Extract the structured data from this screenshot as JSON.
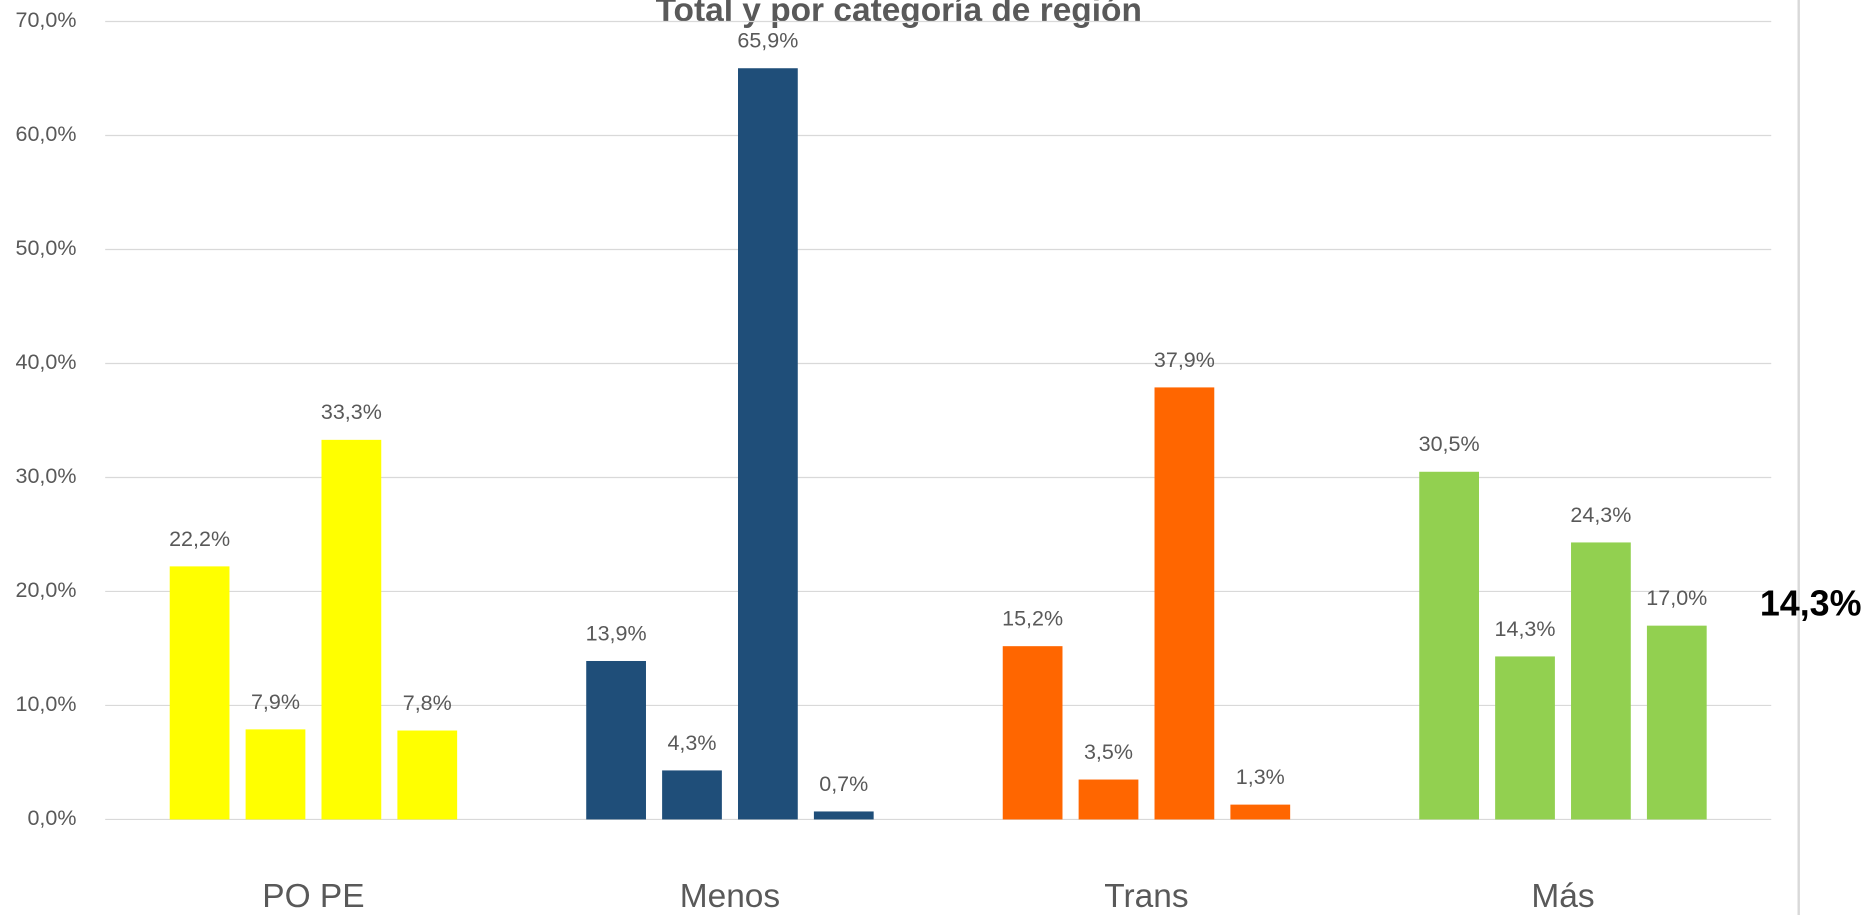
{
  "chart_data": {
    "type": "bar",
    "title": "Total y por categoría de región",
    "categories": [
      "PO PE",
      "Menos",
      "Trans",
      "Más"
    ],
    "groups": [
      {
        "color": "#ffff00",
        "values": [
          22.2,
          7.9,
          33.3,
          7.8
        ],
        "value_labels": [
          "22,2%",
          "7,9%",
          "33,3%",
          "7,8%"
        ]
      },
      {
        "color": "#1f4e79",
        "values": [
          13.9,
          4.3,
          65.9,
          0.7
        ],
        "value_labels": [
          "13,9%",
          "4,3%",
          "65,9%",
          "0,7%"
        ]
      },
      {
        "color": "#ff6600",
        "values": [
          15.2,
          3.5,
          37.9,
          1.3
        ],
        "value_labels": [
          "15,2%",
          "3,5%",
          "37,9%",
          "1,3%"
        ]
      },
      {
        "color": "#92d050",
        "values": [
          30.5,
          14.3,
          24.3,
          17.0
        ],
        "value_labels": [
          "30,5%",
          "14,3%",
          "24,3%",
          "17,0%"
        ]
      }
    ],
    "reference": {
      "value": 14.3,
      "label": "14,3%",
      "color": "#1f6fbf"
    },
    "ylim": [
      0,
      70
    ],
    "yticks": [
      {
        "value": 0,
        "label": "0,0%"
      },
      {
        "value": 10,
        "label": "10,0%"
      },
      {
        "value": 20,
        "label": "20,0%"
      },
      {
        "value": 30,
        "label": "30,0%"
      },
      {
        "value": 40,
        "label": "40,0%"
      },
      {
        "value": 50,
        "label": "50,0%"
      },
      {
        "value": 60,
        "label": "60,0%"
      },
      {
        "value": 70,
        "label": "70,0%"
      }
    ],
    "grid": true
  }
}
